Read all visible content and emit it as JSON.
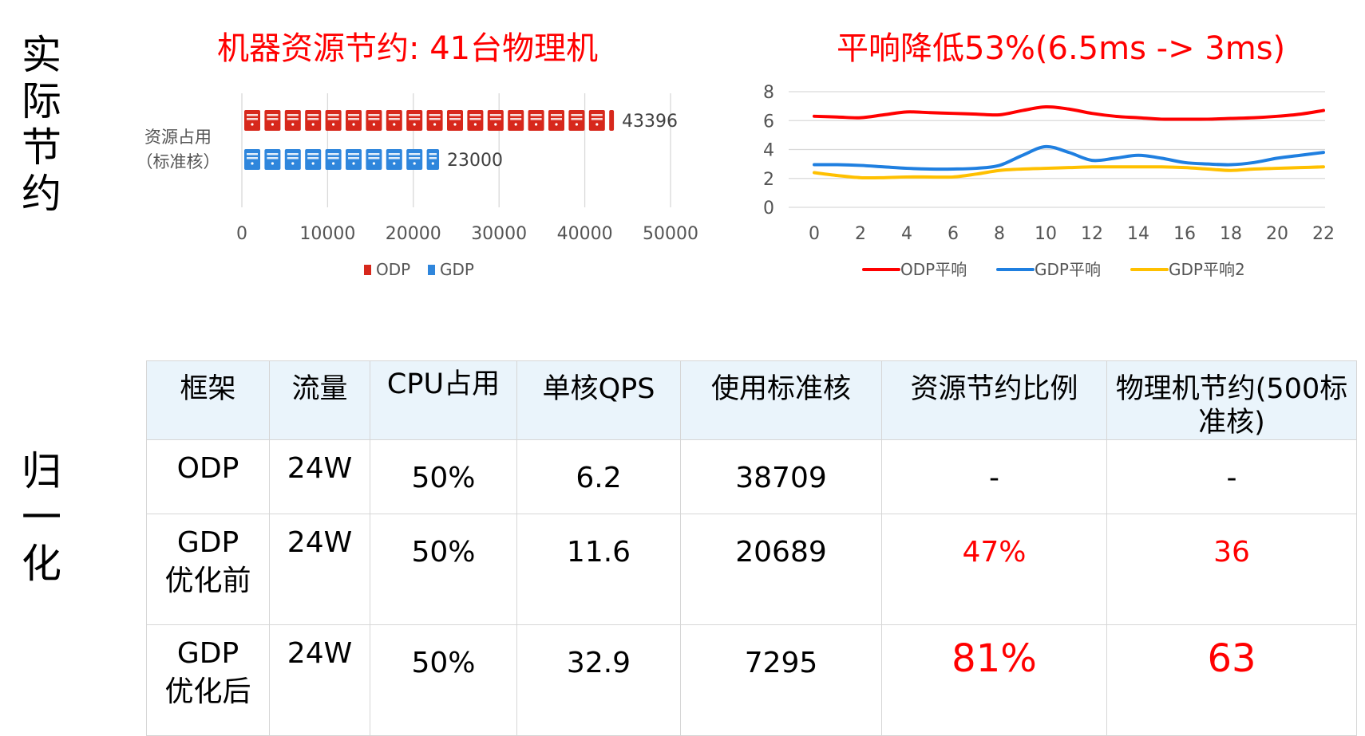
{
  "side_labels": {
    "top": [
      "实",
      "际",
      "节",
      "约"
    ],
    "bottom": [
      "归",
      "一",
      "化"
    ]
  },
  "chart_data": [
    {
      "type": "bar",
      "title": "机器资源节约: 41台物理机",
      "categories": [
        "资源占用（标准核）"
      ],
      "category_lines": [
        "资源占用",
        "（标准核）"
      ],
      "series": [
        {
          "name": "ODP",
          "values": [
            43396
          ],
          "color": "#d7281c"
        },
        {
          "name": "GDP",
          "values": [
            23000
          ],
          "color": "#2f86dc"
        }
      ],
      "data_labels": [
        "43396",
        "23000"
      ],
      "xlim": [
        0,
        50000
      ],
      "xticks": [
        0,
        10000,
        20000,
        30000,
        40000,
        50000
      ],
      "xtick_labels": [
        "0",
        "10000",
        "20000",
        "30000",
        "40000",
        "50000"
      ],
      "grid": "vertical",
      "legend": "bottom",
      "marker_style": "server-icon-pictograph"
    },
    {
      "type": "line",
      "title": "平响降低53%(6.5ms -> 3ms)",
      "x": [
        0,
        1,
        2,
        3,
        4,
        5,
        6,
        7,
        8,
        9,
        10,
        11,
        12,
        13,
        14,
        15,
        16,
        17,
        18,
        19,
        20,
        21,
        22
      ],
      "xticks": [
        0,
        2,
        4,
        6,
        8,
        10,
        12,
        14,
        16,
        18,
        20,
        22
      ],
      "xtick_labels": [
        "0",
        "2",
        "4",
        "6",
        "8",
        "10",
        "12",
        "14",
        "16",
        "18",
        "20",
        "22"
      ],
      "ylim": [
        0,
        8
      ],
      "yticks": [
        0,
        2,
        4,
        6,
        8
      ],
      "ytick_labels": [
        "0",
        "2",
        "4",
        "6",
        "8"
      ],
      "grid": "horizontal",
      "legend": "bottom",
      "series": [
        {
          "name": "ODP平响",
          "color": "#ff0000",
          "values": [
            6.3,
            6.25,
            6.2,
            6.4,
            6.6,
            6.55,
            6.5,
            6.45,
            6.4,
            6.7,
            6.95,
            6.8,
            6.5,
            6.3,
            6.2,
            6.1,
            6.1,
            6.1,
            6.15,
            6.2,
            6.3,
            6.45,
            6.7
          ]
        },
        {
          "name": "GDP平响",
          "color": "#1f7fe0",
          "values": [
            2.95,
            2.95,
            2.9,
            2.8,
            2.7,
            2.65,
            2.65,
            2.7,
            2.9,
            3.6,
            4.2,
            3.8,
            3.25,
            3.4,
            3.6,
            3.4,
            3.1,
            3.0,
            2.95,
            3.1,
            3.4,
            3.6,
            3.8
          ]
        },
        {
          "name": "GDP平响2",
          "color": "#ffc000",
          "values": [
            2.4,
            2.2,
            2.05,
            2.05,
            2.1,
            2.1,
            2.1,
            2.3,
            2.55,
            2.65,
            2.7,
            2.75,
            2.8,
            2.8,
            2.8,
            2.8,
            2.75,
            2.65,
            2.55,
            2.65,
            2.7,
            2.75,
            2.8
          ]
        }
      ]
    }
  ],
  "table": {
    "headers": [
      [
        "框架"
      ],
      [
        "流量"
      ],
      [
        "CPU",
        "占用"
      ],
      [
        "单核",
        "QPS"
      ],
      [
        "使用标准核"
      ],
      [
        "资源节约比例"
      ],
      [
        "物理机节约",
        "(500标准核)"
      ]
    ],
    "rows": [
      {
        "framework": [
          "ODP"
        ],
        "traffic": "24W",
        "cpu": "50%",
        "qps": "6.2",
        "cores": "38709",
        "ratio": "-",
        "machines": "-"
      },
      {
        "framework": [
          "GDP",
          "优化前"
        ],
        "traffic": "24W",
        "cpu": "50%",
        "qps": "11.6",
        "cores": "20689",
        "ratio": "47%",
        "machines": "36"
      },
      {
        "framework": [
          "GDP",
          "优化后"
        ],
        "traffic": "24W",
        "cpu": "50%",
        "qps": "32.9",
        "cores": "7295",
        "ratio": "81%",
        "machines": "63"
      }
    ],
    "highlight_color": "#ff0000",
    "header_bg": "#eaf4fb"
  }
}
